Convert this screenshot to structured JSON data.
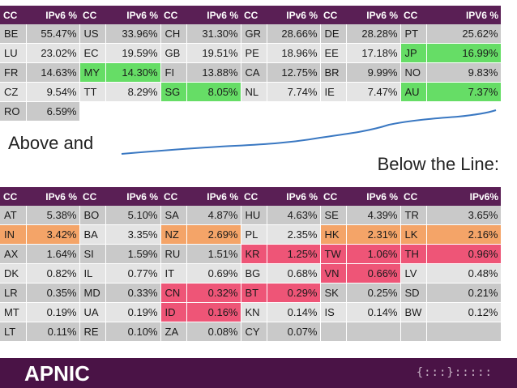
{
  "top_table": {
    "headers": [
      "CC",
      "IPv6 %",
      "CC",
      "IPv6 %",
      "CC",
      "IPv6 %",
      "CC",
      "IPv6 %",
      "CC",
      "IPv6 %",
      "CC",
      "IPV6 %"
    ],
    "rows": [
      [
        {
          "cc": "BE",
          "pct": "55.47%"
        },
        {
          "cc": "US",
          "pct": "33.96%"
        },
        {
          "cc": "CH",
          "pct": "31.30%"
        },
        {
          "cc": "GR",
          "pct": "28.66%"
        },
        {
          "cc": "DE",
          "pct": "28.28%"
        },
        {
          "cc": "PT",
          "pct": "25.62%"
        }
      ],
      [
        {
          "cc": "LU",
          "pct": "23.02%"
        },
        {
          "cc": "EC",
          "pct": "19.59%"
        },
        {
          "cc": "GB",
          "pct": "19.51%"
        },
        {
          "cc": "PE",
          "pct": "18.96%"
        },
        {
          "cc": "EE",
          "pct": "17.18%"
        },
        {
          "cc": "JP",
          "pct": "16.99%",
          "hl": "green"
        }
      ],
      [
        {
          "cc": "FR",
          "pct": "14.63%"
        },
        {
          "cc": "MY",
          "pct": "14.30%",
          "hl": "green"
        },
        {
          "cc": "FI",
          "pct": "13.88%"
        },
        {
          "cc": "CA",
          "pct": "12.75%"
        },
        {
          "cc": "BR",
          "pct": "9.99%"
        },
        {
          "cc": "NO",
          "pct": "9.83%"
        }
      ],
      [
        {
          "cc": "CZ",
          "pct": "9.54%"
        },
        {
          "cc": "TT",
          "pct": "8.29%"
        },
        {
          "cc": "SG",
          "pct": "8.05%",
          "hl": "green"
        },
        {
          "cc": "NL",
          "pct": "7.74%"
        },
        {
          "cc": "IE",
          "pct": "7.47%"
        },
        {
          "cc": "AU",
          "pct": "7.37%",
          "hl": "green"
        }
      ],
      [
        {
          "cc": "RO",
          "pct": "6.59%"
        }
      ]
    ]
  },
  "caption_above": "Above and",
  "caption_below": "Below the Line:",
  "bottom_table": {
    "headers": [
      "CC",
      "IPv6 %",
      "CC",
      "IPv6 %",
      "CC",
      "IPv6 %",
      "CC",
      "IPv6 %",
      "CC",
      "IPv6 %",
      "CC",
      "IPv6%"
    ],
    "rows": [
      [
        {
          "cc": "AT",
          "pct": "5.38%"
        },
        {
          "cc": "BO",
          "pct": "5.10%"
        },
        {
          "cc": "SA",
          "pct": "4.87%"
        },
        {
          "cc": "HU",
          "pct": "4.63%"
        },
        {
          "cc": "SE",
          "pct": "4.39%"
        },
        {
          "cc": "TR",
          "pct": "3.65%"
        }
      ],
      [
        {
          "cc": "IN",
          "pct": "3.42%",
          "hl": "orange"
        },
        {
          "cc": "BA",
          "pct": "3.35%"
        },
        {
          "cc": "NZ",
          "pct": "2.69%",
          "hl": "orange"
        },
        {
          "cc": "PL",
          "pct": "2.35%"
        },
        {
          "cc": "HK",
          "pct": "2.31%",
          "hl": "orange"
        },
        {
          "cc": "LK",
          "pct": "2.16%",
          "hl": "orange"
        }
      ],
      [
        {
          "cc": "AX",
          "pct": "1.64%"
        },
        {
          "cc": "SI",
          "pct": "1.59%"
        },
        {
          "cc": "RU",
          "pct": "1.51%"
        },
        {
          "cc": "KR",
          "pct": "1.25%",
          "hl": "pink"
        },
        {
          "cc": "TW",
          "pct": "1.06%",
          "hl": "pink"
        },
        {
          "cc": "TH",
          "pct": "0.96%",
          "hl": "pink"
        }
      ],
      [
        {
          "cc": "DK",
          "pct": "0.82%"
        },
        {
          "cc": "IL",
          "pct": "0.77%"
        },
        {
          "cc": "IT",
          "pct": "0.69%"
        },
        {
          "cc": "BG",
          "pct": "0.68%"
        },
        {
          "cc": "VN",
          "pct": "0.66%",
          "hl": "pink"
        },
        {
          "cc": "LV",
          "pct": "0.48%"
        }
      ],
      [
        {
          "cc": "LR",
          "pct": "0.35%"
        },
        {
          "cc": "MD",
          "pct": "0.33%"
        },
        {
          "cc": "CN",
          "pct": "0.32%",
          "hl": "pink"
        },
        {
          "cc": "BT",
          "pct": "0.29%",
          "hl": "pink"
        },
        {
          "cc": "SK",
          "pct": "0.25%"
        },
        {
          "cc": "SD",
          "pct": "0.21%"
        }
      ],
      [
        {
          "cc": "MT",
          "pct": "0.19%"
        },
        {
          "cc": "UA",
          "pct": "0.19%"
        },
        {
          "cc": "ID",
          "pct": "0.16%",
          "hl": "pink"
        },
        {
          "cc": "KN",
          "pct": "0.14%"
        },
        {
          "cc": "IS",
          "pct": "0.14%"
        },
        {
          "cc": "BW",
          "pct": "0.12%"
        }
      ],
      [
        {
          "cc": "LT",
          "pct": "0.11%"
        },
        {
          "cc": "RE",
          "pct": "0.10%"
        },
        {
          "cc": "ZA",
          "pct": "0.08%"
        },
        {
          "cc": "CY",
          "pct": "0.07%"
        }
      ]
    ]
  },
  "colors": {
    "header_bg": "#5a1f55",
    "row_dark": "#c9c9c9",
    "row_light": "#e4e4e4",
    "highlight_green": "#66dd66",
    "highlight_orange": "#f4a468",
    "highlight_pink": "#ee5577",
    "trend_line": "#3a78c2",
    "footer_bg": "#4a1346"
  },
  "footer": {
    "logo_text": "APNIC",
    "mark_text": "{:::}:::::"
  }
}
